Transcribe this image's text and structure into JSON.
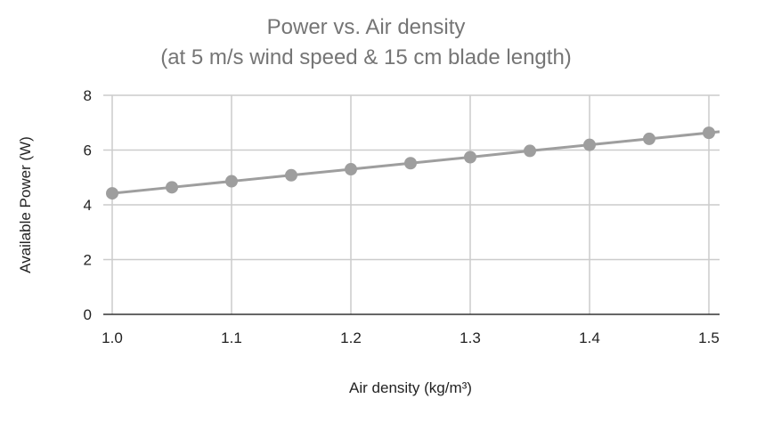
{
  "chart_data": {
    "type": "line",
    "title": "Power vs. Air density",
    "subtitle": "(at 5 m/s wind speed & 15 cm blade length)",
    "xlabel": "Air density (kg/m³)",
    "ylabel": "Available Power (W)",
    "xlim": [
      1.0,
      1.5
    ],
    "ylim": [
      0,
      8
    ],
    "x_ticks": [
      "1.0",
      "1.1",
      "1.2",
      "1.3",
      "1.4",
      "1.5"
    ],
    "y_ticks": [
      "0",
      "2",
      "4",
      "6",
      "8"
    ],
    "grid": true,
    "legend": "none",
    "series": [
      {
        "color": "#9e9e9e",
        "x": [
          1.0,
          1.05,
          1.1,
          1.15,
          1.2,
          1.25,
          1.3,
          1.35,
          1.4,
          1.45,
          1.5
        ],
        "y": [
          4.42,
          4.64,
          4.86,
          5.08,
          5.3,
          5.52,
          5.74,
          5.97,
          6.19,
          6.41,
          6.63
        ]
      }
    ]
  }
}
